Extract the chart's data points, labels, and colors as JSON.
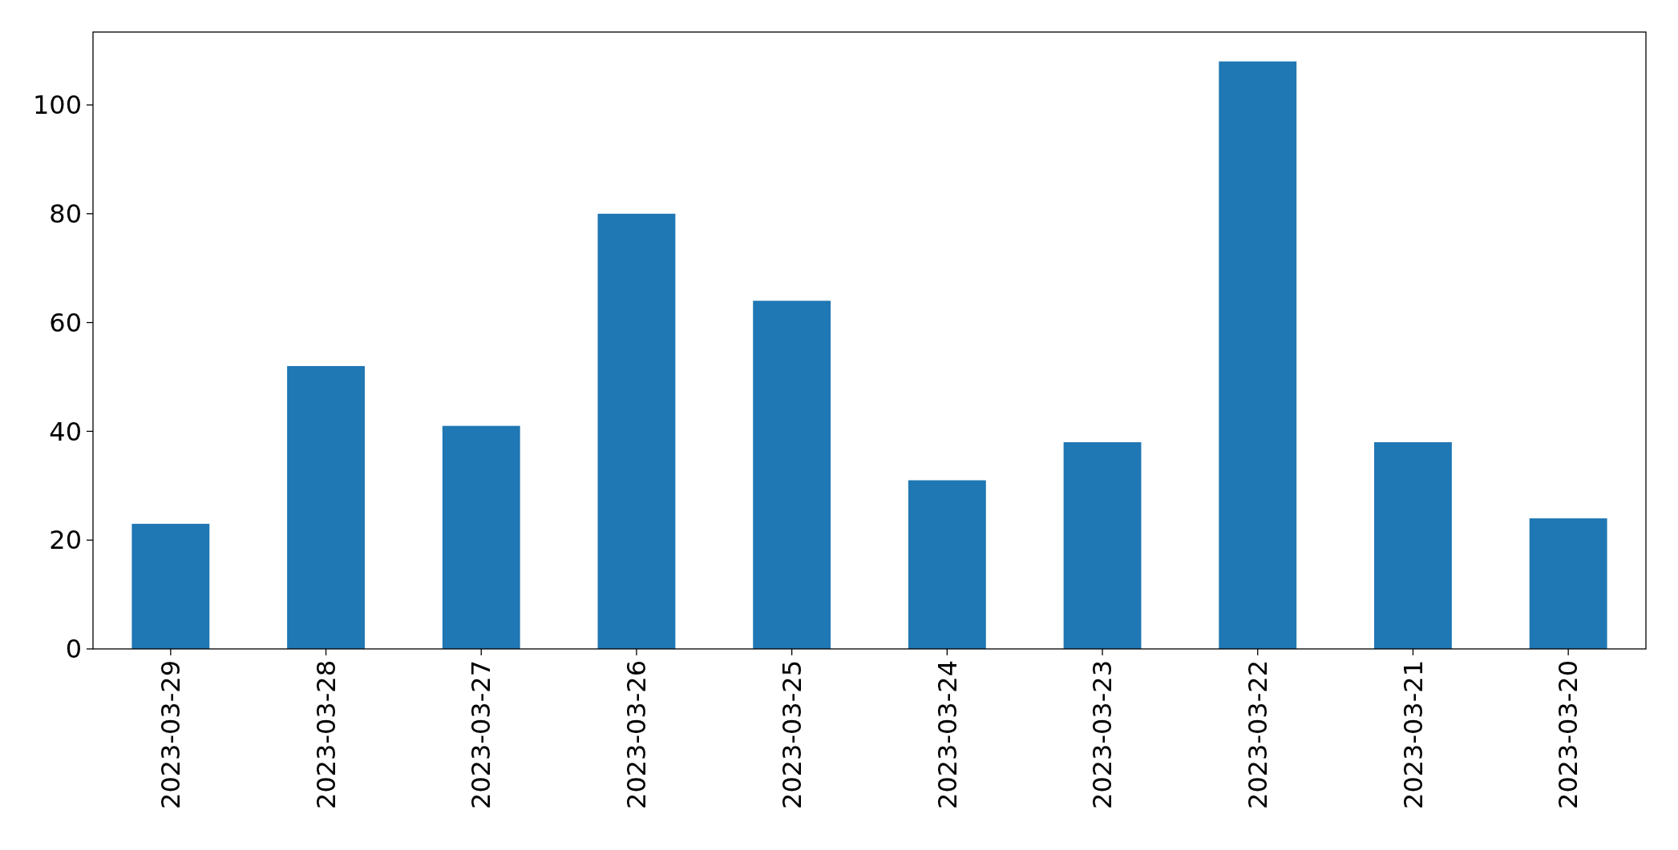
{
  "chart_data": {
    "type": "bar",
    "categories": [
      "2023-03-29",
      "2023-03-28",
      "2023-03-27",
      "2023-03-26",
      "2023-03-25",
      "2023-03-24",
      "2023-03-23",
      "2023-03-22",
      "2023-03-21",
      "2023-03-20"
    ],
    "values": [
      23,
      52,
      41,
      80,
      64,
      31,
      38,
      108,
      38,
      24
    ],
    "color": "#1f77b4",
    "ylim": [
      0,
      113.4
    ],
    "yticks": [
      0,
      20,
      40,
      60,
      80,
      100
    ]
  }
}
